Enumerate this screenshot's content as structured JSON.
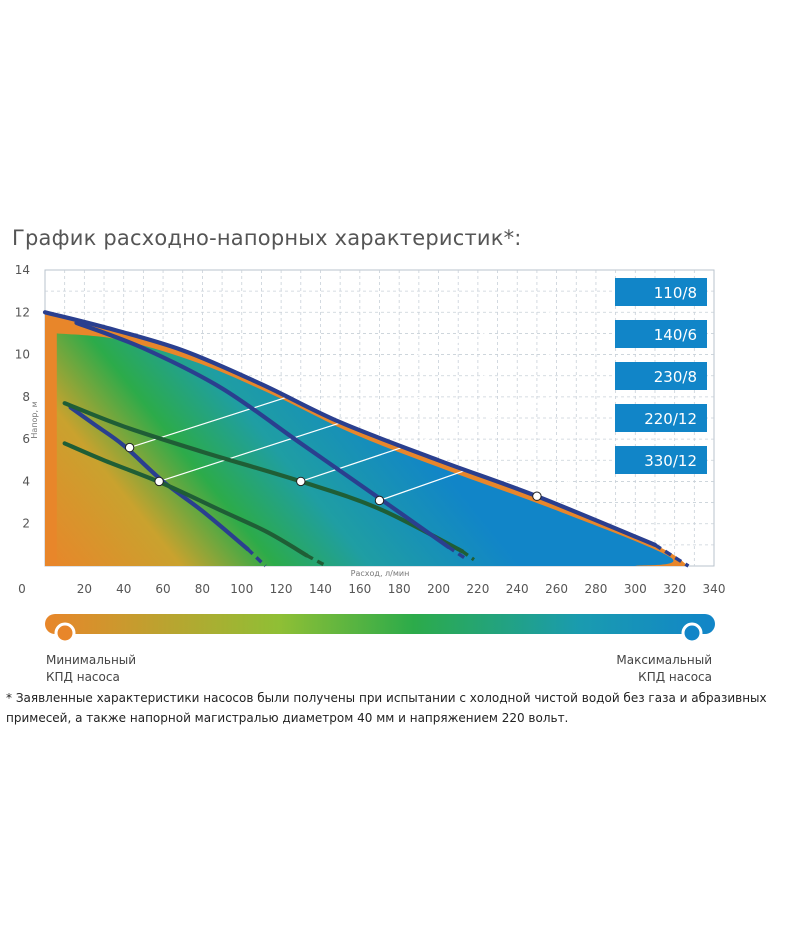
{
  "title": "График расходно-напорных характеристик*:",
  "chart_data": {
    "type": "line",
    "xlabel": "Расход, л/мин",
    "ylabel": "Напор, м",
    "xlim": [
      0,
      340
    ],
    "ylim": [
      0,
      14
    ],
    "x_ticks": [
      0,
      20,
      40,
      60,
      80,
      100,
      120,
      140,
      160,
      180,
      200,
      220,
      240,
      260,
      280,
      300,
      320,
      340
    ],
    "y_ticks": [
      2,
      4,
      6,
      8,
      10,
      12,
      14
    ],
    "grid": true,
    "series": [
      {
        "name": "110/8",
        "color": "#2a3f8f",
        "points": [
          [
            13,
            7.5
          ],
          [
            25,
            6.7
          ],
          [
            40,
            5.7
          ],
          [
            60,
            4.0
          ],
          [
            80,
            2.6
          ],
          [
            103,
            0.8
          ]
        ],
        "dash_to": [
          112,
          0.0
        ],
        "marker": [
          43,
          5.6
        ]
      },
      {
        "name": "140/6",
        "color": "#1f5e36",
        "points": [
          [
            10,
            5.8
          ],
          [
            30,
            5.0
          ],
          [
            60,
            3.9
          ],
          [
            90,
            2.6
          ],
          [
            113,
            1.6
          ],
          [
            133,
            0.5
          ]
        ],
        "dash_to": [
          143,
          0.0
        ],
        "marker": [
          58,
          4.0
        ]
      },
      {
        "name": "230/8",
        "color": "#1f5e36",
        "points": [
          [
            10,
            7.7
          ],
          [
            40,
            6.6
          ],
          [
            80,
            5.4
          ],
          [
            130,
            4.0
          ],
          [
            170,
            2.7
          ],
          [
            212,
            0.7
          ]
        ],
        "dash_to": [
          218,
          0.3
        ],
        "marker": [
          130,
          4.0
        ]
      },
      {
        "name": "220/12",
        "color": "#2a3f8f",
        "points": [
          [
            16,
            11.5
          ],
          [
            50,
            10.3
          ],
          [
            90,
            8.4
          ],
          [
            130,
            5.8
          ],
          [
            170,
            3.2
          ],
          [
            205,
            0.9
          ]
        ],
        "dash_to": [
          213,
          0.4
        ],
        "marker": [
          170,
          3.1
        ]
      },
      {
        "name": "330/12",
        "color": "#2a3f8f",
        "points": [
          [
            0,
            12.0
          ],
          [
            30,
            11.3
          ],
          [
            70,
            10.2
          ],
          [
            110,
            8.6
          ],
          [
            150,
            6.8
          ],
          [
            200,
            5.0
          ],
          [
            250,
            3.3
          ],
          [
            310,
            1.0
          ]
        ],
        "dash_to": [
          327,
          0.0
        ],
        "marker": [
          250,
          3.3
        ]
      }
    ]
  },
  "legend": {
    "min_line1": "Минимальный",
    "min_line2": "КПД насоса",
    "max_line1": "Максимальный",
    "max_line2": "КПД насоса",
    "min_color": "#e8862a",
    "mid_color": "#2cab4a",
    "max_color": "#1185c8"
  },
  "footnote": "* Заявленные характеристики насосов были получены при испытании с холодной чистой водой без газа и абразивных примесей, а также напорной магистралью диаметром 40 мм и напряжением 220 вольт."
}
